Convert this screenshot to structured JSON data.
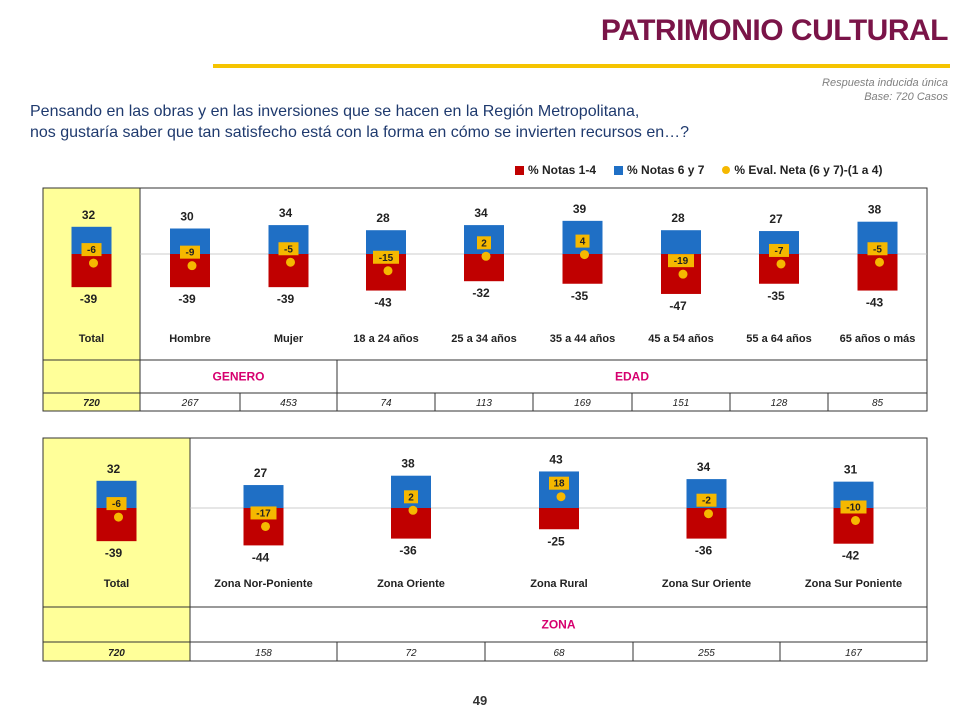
{
  "header": {
    "title": "PATRIMONIO CULTURAL",
    "response_type": "Respuesta inducida única",
    "base": "Base: 720 Casos"
  },
  "question": {
    "line1": "Pensando en las obras y en las inversiones que se hacen en la Región Metropolitana,",
    "line2": "nos gustaría saber que tan satisfecho está con la forma en cómo se invierten recursos en…?"
  },
  "legend": {
    "low": "% Notas 1-4",
    "high": "% Notas 6 y 7",
    "net": "% Eval. Neta (6 y 7)-(1 a 4)"
  },
  "colors": {
    "low": "#c00000",
    "high": "#1f6fc5",
    "net": "#f5b800",
    "total_panel": "#ffff99",
    "group_label": "#d6006f",
    "title": "#7a1448"
  },
  "page_number": "49",
  "chart_data": [
    {
      "type": "bar",
      "stacked_diverging": true,
      "categories": [
        "Total",
        "Hombre",
        "Mujer",
        "18 a 24 años",
        "25 a 34 años",
        "35 a 44 años",
        "45 a 54 años",
        "55 a 64 años",
        "65 años o más"
      ],
      "series": [
        {
          "name": "% Notas 1-4",
          "values": [
            -39,
            -39,
            -39,
            -43,
            -32,
            -35,
            -47,
            -35,
            -43
          ]
        },
        {
          "name": "% Notas 6 y 7",
          "values": [
            32,
            30,
            34,
            28,
            34,
            39,
            28,
            27,
            38
          ]
        },
        {
          "name": "% Eval. Neta (6 y 7)-(1 a 4)",
          "values": [
            -6,
            -9,
            -5,
            -15,
            2,
            4,
            -19,
            -7,
            -5
          ]
        }
      ],
      "groups": [
        {
          "label": "",
          "span": 1
        },
        {
          "label": "GENERO",
          "span": 2
        },
        {
          "label": "EDAD",
          "span": 6
        }
      ],
      "bases": [
        "720",
        "267",
        "453",
        "74",
        "113",
        "169",
        "151",
        "128",
        "85"
      ]
    },
    {
      "type": "bar",
      "stacked_diverging": true,
      "categories": [
        "Total",
        "Zona Nor-Poniente",
        "Zona Oriente",
        "Zona Rural",
        "Zona Sur Oriente",
        "Zona Sur Poniente"
      ],
      "series": [
        {
          "name": "% Notas 1-4",
          "values": [
            -39,
            -44,
            -36,
            -25,
            -36,
            -42
          ]
        },
        {
          "name": "% Notas 6 y 7",
          "values": [
            32,
            27,
            38,
            43,
            34,
            31
          ]
        },
        {
          "name": "% Eval. Neta (6 y 7)-(1 a 4)",
          "values": [
            -6,
            -17,
            2,
            18,
            -2,
            -10
          ]
        }
      ],
      "groups": [
        {
          "label": "",
          "span": 1
        },
        {
          "label": "ZONA",
          "span": 5
        }
      ],
      "bases": [
        "720",
        "158",
        "72",
        "68",
        "255",
        "167"
      ]
    }
  ]
}
